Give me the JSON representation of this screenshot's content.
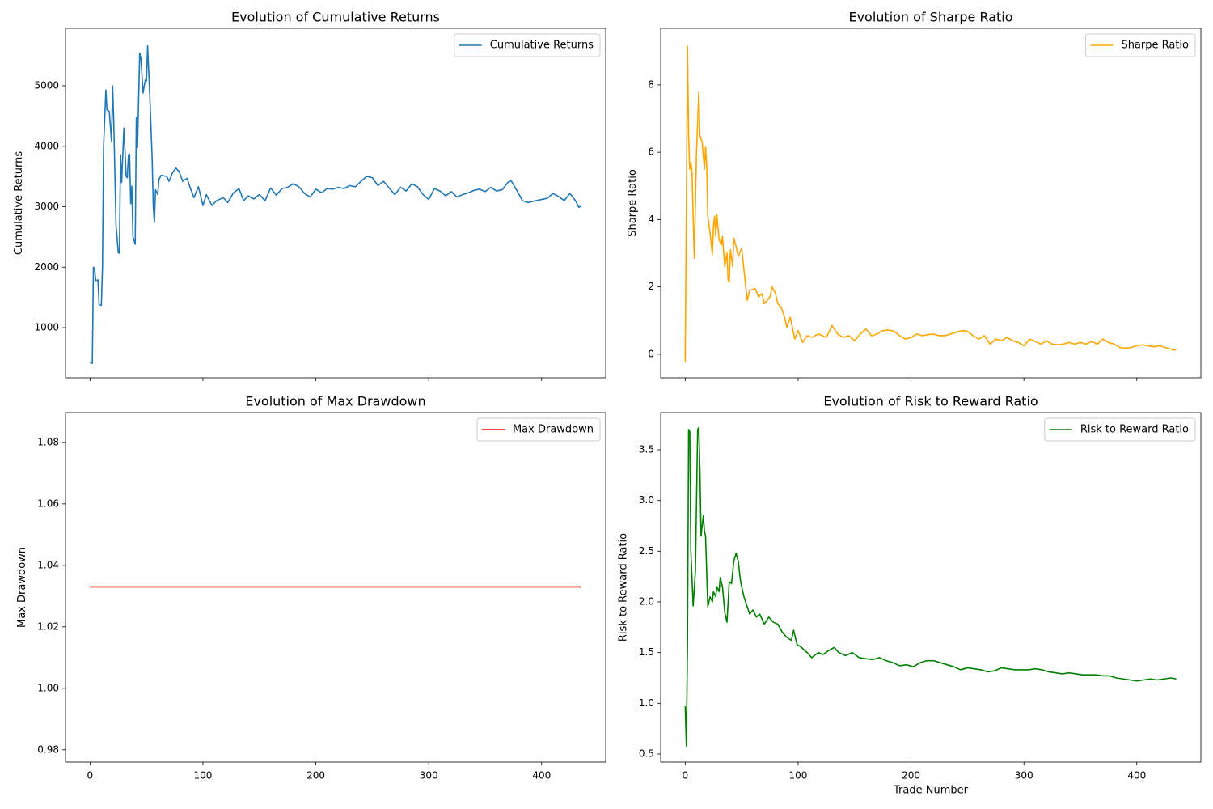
{
  "chart_data": [
    {
      "type": "line",
      "title": "Evolution of Cumulative Returns",
      "ylabel": "Cumulative Returns",
      "x": [
        0,
        2,
        3,
        4,
        5,
        7,
        8,
        10,
        11,
        12,
        14,
        15,
        17,
        19,
        20,
        21,
        23,
        25,
        26,
        27,
        28,
        30,
        32,
        33,
        34,
        35,
        36,
        37,
        38,
        40,
        41,
        42,
        44,
        45,
        47,
        48,
        49,
        50,
        51,
        53,
        55,
        56,
        57,
        58,
        60,
        61,
        63,
        68,
        70,
        73,
        76,
        79,
        82,
        86,
        88,
        92,
        96,
        100,
        103,
        108,
        112,
        118,
        122,
        127,
        132,
        136,
        140,
        145,
        150,
        155,
        160,
        165,
        170,
        175,
        180,
        185,
        190,
        195,
        200,
        205,
        210,
        215,
        220,
        225,
        230,
        235,
        240,
        245,
        250,
        255,
        260,
        265,
        270,
        275,
        280,
        285,
        290,
        295,
        300,
        305,
        310,
        315,
        320,
        325,
        330,
        335,
        340,
        345,
        350,
        355,
        360,
        365,
        370,
        373,
        378,
        383,
        388,
        395,
        400,
        405,
        410,
        415,
        420,
        425,
        430,
        433,
        435
      ],
      "series": [
        {
          "name": "Cumulative Returns",
          "color": "#1f77b4",
          "values": [
            420,
            410,
            2000,
            1980,
            1780,
            1790,
            1380,
            1370,
            2000,
            4000,
            4930,
            4600,
            4580,
            4080,
            5000,
            4400,
            2700,
            2240,
            2230,
            3860,
            3400,
            4300,
            3500,
            3480,
            3850,
            3870,
            3050,
            3340,
            2500,
            2380,
            4470,
            3980,
            5540,
            5460,
            4880,
            5000,
            5100,
            5080,
            5660,
            4800,
            3800,
            3000,
            2740,
            3280,
            3200,
            3450,
            3520,
            3500,
            3420,
            3560,
            3640,
            3580,
            3420,
            3470,
            3350,
            3150,
            3330,
            3020,
            3200,
            3020,
            3100,
            3150,
            3070,
            3230,
            3300,
            3100,
            3180,
            3130,
            3200,
            3100,
            3310,
            3190,
            3300,
            3320,
            3380,
            3330,
            3220,
            3160,
            3290,
            3230,
            3300,
            3290,
            3320,
            3300,
            3350,
            3330,
            3420,
            3500,
            3480,
            3350,
            3420,
            3310,
            3200,
            3320,
            3260,
            3380,
            3330,
            3200,
            3120,
            3300,
            3260,
            3180,
            3250,
            3160,
            3200,
            3230,
            3270,
            3290,
            3250,
            3320,
            3260,
            3280,
            3400,
            3430,
            3270,
            3100,
            3070,
            3100,
            3120,
            3140,
            3220,
            3170,
            3100,
            3220,
            3100,
            2990,
            3010
          ]
        }
      ],
      "xlim": [
        -21.75,
        456.75
      ],
      "xticks": [
        0,
        100,
        200,
        300,
        400
      ],
      "ylim": [
        171,
        5950
      ],
      "yticks": [
        1000,
        2000,
        3000,
        4000,
        5000
      ],
      "legend": "upper right"
    },
    {
      "type": "line",
      "title": "Evolution of Sharpe Ratio",
      "ylabel": "Sharpe Ratio",
      "x": [
        0,
        2,
        3,
        4,
        5,
        6,
        8,
        10,
        12,
        13,
        15,
        17,
        18,
        19,
        20,
        22,
        24,
        25,
        26,
        27,
        28,
        30,
        32,
        33,
        35,
        37,
        38,
        39,
        40,
        42,
        43,
        45,
        47,
        50,
        52,
        55,
        57,
        62,
        65,
        68,
        70,
        75,
        77,
        80,
        82,
        85,
        88,
        90,
        93,
        97,
        100,
        104,
        108,
        112,
        118,
        125,
        130,
        135,
        140,
        145,
        150,
        155,
        160,
        165,
        170,
        175,
        180,
        185,
        190,
        195,
        200,
        205,
        210,
        215,
        220,
        225,
        230,
        235,
        240,
        245,
        250,
        255,
        260,
        265,
        270,
        275,
        280,
        285,
        290,
        295,
        300,
        305,
        310,
        315,
        320,
        325,
        330,
        335,
        340,
        345,
        350,
        355,
        360,
        365,
        370,
        375,
        380,
        385,
        390,
        395,
        400,
        405,
        410,
        415,
        420,
        425,
        430,
        433,
        435
      ],
      "series": [
        {
          "name": "Sharpe Ratio",
          "color": "#ffa500",
          "values": [
            -0.25,
            9.15,
            6.5,
            5.5,
            5.7,
            5.4,
            2.85,
            6.0,
            7.8,
            6.5,
            6.3,
            5.5,
            6.15,
            5.6,
            4.1,
            3.6,
            2.95,
            3.8,
            4.1,
            3.5,
            4.15,
            3.4,
            3.25,
            3.5,
            2.6,
            3.0,
            2.2,
            2.15,
            3.1,
            2.6,
            3.45,
            3.2,
            2.9,
            3.15,
            2.5,
            1.6,
            1.9,
            1.95,
            1.7,
            1.8,
            1.5,
            1.7,
            2.0,
            1.8,
            1.5,
            1.4,
            1.1,
            0.8,
            1.1,
            0.45,
            0.7,
            0.35,
            0.55,
            0.5,
            0.6,
            0.5,
            0.85,
            0.6,
            0.5,
            0.55,
            0.4,
            0.6,
            0.75,
            0.55,
            0.6,
            0.7,
            0.72,
            0.68,
            0.55,
            0.45,
            0.5,
            0.6,
            0.55,
            0.58,
            0.6,
            0.55,
            0.55,
            0.6,
            0.65,
            0.7,
            0.68,
            0.55,
            0.45,
            0.55,
            0.3,
            0.45,
            0.4,
            0.5,
            0.4,
            0.35,
            0.25,
            0.45,
            0.38,
            0.3,
            0.4,
            0.3,
            0.28,
            0.3,
            0.35,
            0.3,
            0.35,
            0.3,
            0.38,
            0.3,
            0.45,
            0.35,
            0.3,
            0.2,
            0.18,
            0.2,
            0.25,
            0.28,
            0.25,
            0.22,
            0.25,
            0.2,
            0.15,
            0.12,
            0.15
          ]
        }
      ],
      "xlim": [
        -21.75,
        456.75
      ],
      "xticks": [
        0,
        100,
        200,
        300,
        400
      ],
      "ylim": [
        -0.7,
        9.68
      ],
      "yticks": [
        0,
        2,
        4,
        6,
        8
      ],
      "legend": "upper right"
    },
    {
      "type": "line",
      "title": "Evolution of Max Drawdown",
      "ylabel": "Max Drawdown",
      "x": [
        0,
        435
      ],
      "series": [
        {
          "name": "Max Drawdown",
          "color": "#ff0000",
          "values": [
            1.033,
            1.033
          ]
        }
      ],
      "xlim": [
        -21.75,
        456.75
      ],
      "xticks": [
        0,
        100,
        200,
        300,
        400
      ],
      "ylim": [
        0.976,
        1.0897
      ],
      "yticks": [
        0.98,
        {
          "value": 1,
          "label": "1.00"
        },
        1.02,
        1.04,
        1.06,
        1.08
      ],
      "legend": "upper right"
    },
    {
      "type": "line",
      "title": "Evolution of Risk to Reward Ratio",
      "ylabel": "Risk to Reward Ratio",
      "xlabel": "Trade Number",
      "x": [
        0,
        1,
        2,
        3,
        4,
        5,
        7,
        9,
        11,
        12,
        13,
        14,
        16,
        17,
        18,
        20,
        22,
        24,
        25,
        27,
        28,
        30,
        31,
        33,
        35,
        37,
        39,
        41,
        43,
        45,
        47,
        49,
        52,
        55,
        57,
        60,
        63,
        66,
        70,
        74,
        78,
        82,
        86,
        90,
        94,
        96,
        99,
        103,
        108,
        112,
        118,
        122,
        127,
        132,
        136,
        142,
        148,
        154,
        160,
        166,
        172,
        178,
        184,
        190,
        196,
        202,
        208,
        214,
        220,
        226,
        232,
        238,
        244,
        250,
        256,
        262,
        268,
        274,
        280,
        286,
        292,
        298,
        304,
        310,
        316,
        322,
        328,
        334,
        340,
        346,
        352,
        358,
        364,
        370,
        376,
        382,
        388,
        394,
        400,
        406,
        412,
        418,
        424,
        430,
        435
      ],
      "series": [
        {
          "name": "Risk to Reward Ratio",
          "color": "#008000",
          "values": [
            0.97,
            0.58,
            1.6,
            3.7,
            3.68,
            2.5,
            1.96,
            2.3,
            3.7,
            3.72,
            3.3,
            2.65,
            2.85,
            2.7,
            2.65,
            1.95,
            2.05,
            2.0,
            2.1,
            2.05,
            2.15,
            2.1,
            2.24,
            2.15,
            1.9,
            1.8,
            2.2,
            2.18,
            2.4,
            2.48,
            2.4,
            2.2,
            2.05,
            1.95,
            1.88,
            1.92,
            1.85,
            1.88,
            1.78,
            1.85,
            1.8,
            1.78,
            1.7,
            1.65,
            1.62,
            1.72,
            1.58,
            1.55,
            1.5,
            1.45,
            1.5,
            1.48,
            1.52,
            1.55,
            1.5,
            1.47,
            1.5,
            1.45,
            1.44,
            1.43,
            1.45,
            1.42,
            1.4,
            1.37,
            1.38,
            1.36,
            1.4,
            1.42,
            1.42,
            1.4,
            1.38,
            1.36,
            1.33,
            1.35,
            1.34,
            1.33,
            1.31,
            1.32,
            1.35,
            1.34,
            1.33,
            1.33,
            1.33,
            1.34,
            1.33,
            1.31,
            1.3,
            1.29,
            1.3,
            1.29,
            1.28,
            1.28,
            1.28,
            1.27,
            1.27,
            1.25,
            1.24,
            1.23,
            1.22,
            1.23,
            1.24,
            1.23,
            1.24,
            1.25,
            1.24
          ]
        }
      ],
      "xlim": [
        -21.75,
        456.75
      ],
      "xticks": [
        0,
        100,
        200,
        300,
        400
      ],
      "ylim": [
        0.42,
        3.867
      ],
      "yticks": [
        0.5,
        {
          "value": 1,
          "label": "1.0"
        },
        1.5,
        {
          "value": 2,
          "label": "2.0"
        },
        2.5,
        {
          "value": 3,
          "label": "3.0"
        },
        3.5
      ],
      "legend": "upper right"
    }
  ]
}
